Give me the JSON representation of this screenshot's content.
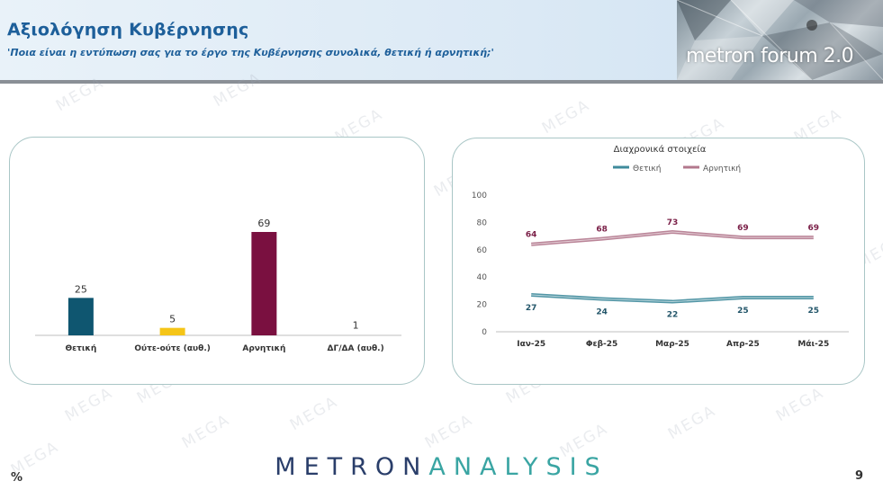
{
  "header": {
    "title": "Αξιολόγηση Κυβέρνησης",
    "subtitle": "'Ποια είναι η εντύπωση σας για το έργο της Κυβέρνησης συνολικά, θετική ή αρνητική;'",
    "logo_text": "metron forum 2.0"
  },
  "watermark": "MEGA",
  "footer": {
    "brand_a": "METRON",
    "brand_b": "ANALYSIS",
    "unit": "%",
    "page": "9"
  },
  "chart_data": [
    {
      "type": "bar",
      "title": "",
      "categories": [
        "Θετική",
        "Ούτε-ούτε (αυθ.)",
        "Αρνητική",
        "ΔΓ/ΔΑ (αυθ.)"
      ],
      "values": [
        25,
        5,
        69,
        1
      ],
      "colors": [
        "#0f5670",
        "#f5c518",
        "#7a1040",
        "#7a1040"
      ],
      "ylim": [
        0,
        75
      ],
      "grid": false
    },
    {
      "type": "line",
      "title": "Διαχρονικά στοιχεία",
      "categories": [
        "Ιαν-25",
        "Φεβ-25",
        "Μαρ-25",
        "Απρ-25",
        "Μάι-25"
      ],
      "series": [
        {
          "name": "Θετική",
          "values": [
            27,
            24,
            22,
            25,
            25
          ],
          "color": "#3f8b9c"
        },
        {
          "name": "Αρνητική",
          "values": [
            64,
            68,
            73,
            69,
            69
          ],
          "color": "#b3788d"
        }
      ],
      "ylim": [
        0,
        100
      ],
      "yticks": [
        0,
        20,
        40,
        60,
        80,
        100
      ],
      "legend": "top",
      "grid": false
    }
  ]
}
